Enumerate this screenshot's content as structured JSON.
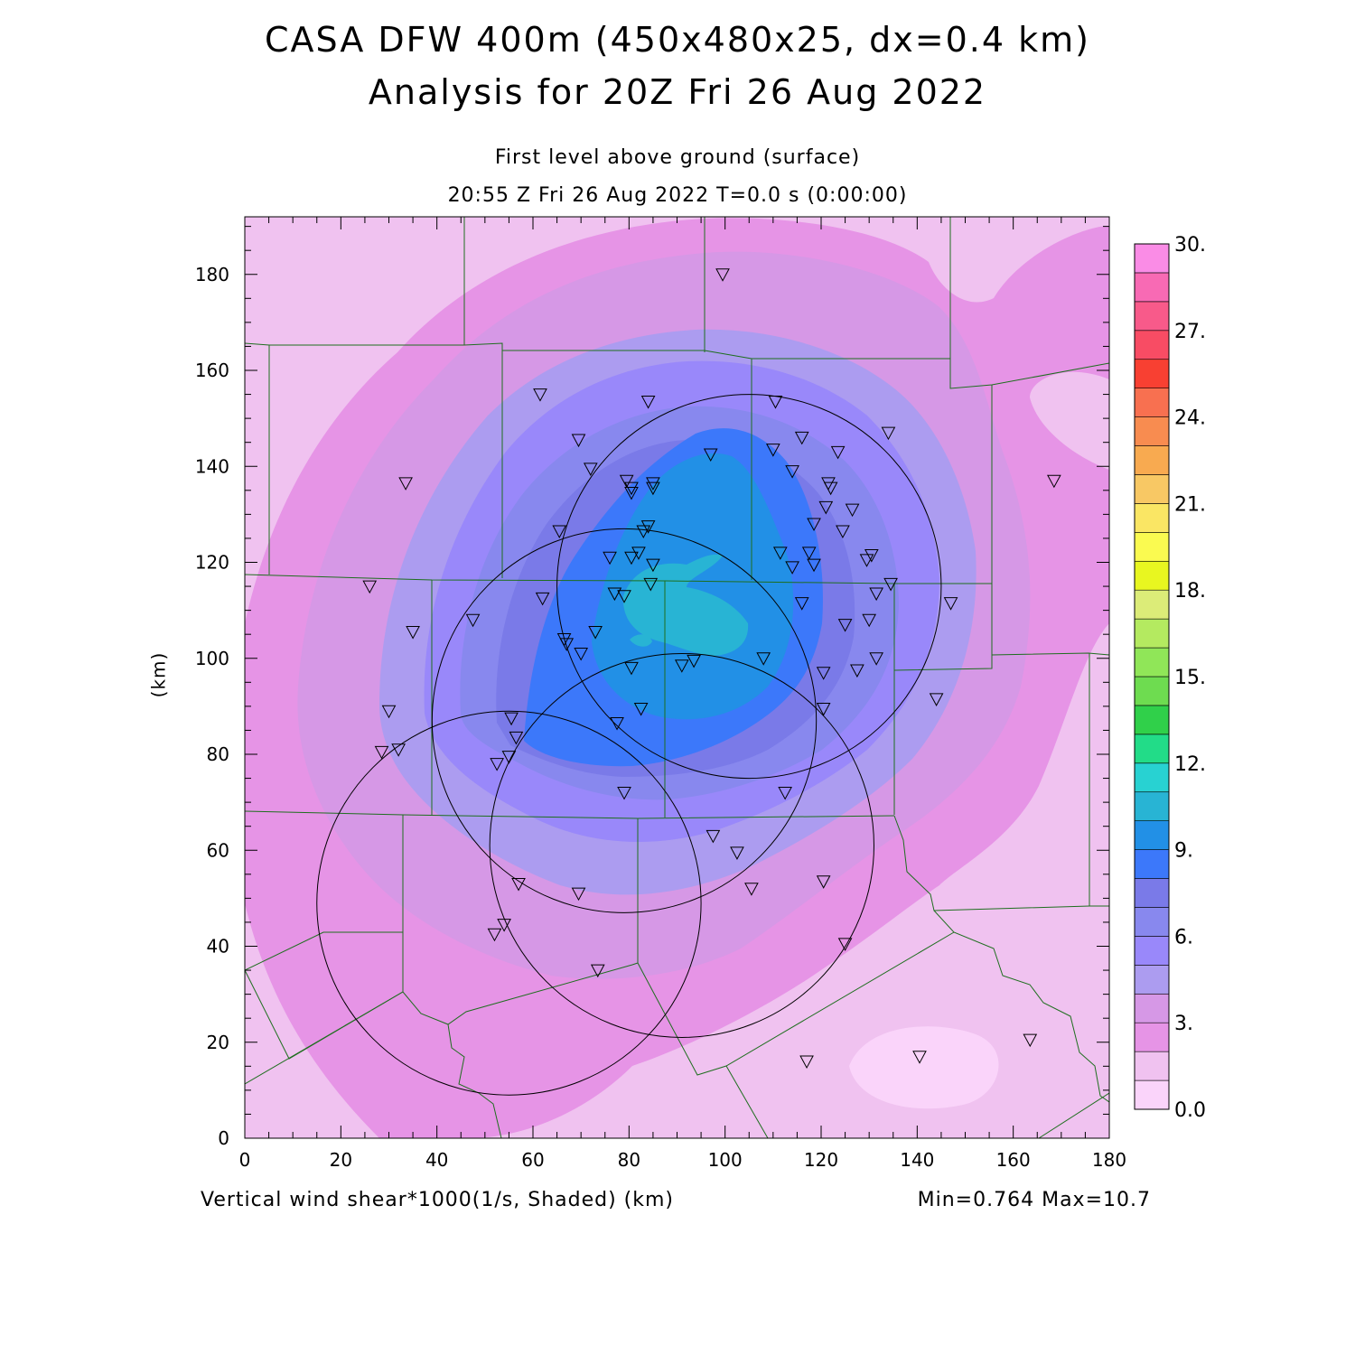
{
  "title": {
    "line1": "CASA DFW 400m (450x480x25, dx=0.4 km)",
    "line2": "Analysis for 20Z Fri 26 Aug 2022"
  },
  "subtitle": {
    "level": "First level above ground (surface)",
    "time": "20:55 Z Fri 26 Aug 2022   T=0.0 s (0:00:00)"
  },
  "axes": {
    "x_ticks": [
      "0",
      "20",
      "40",
      "60",
      "80",
      "100",
      "120",
      "140",
      "160",
      "180"
    ],
    "y_ticks": [
      "0",
      "20",
      "40",
      "60",
      "80",
      "100",
      "120",
      "140",
      "160",
      "180"
    ],
    "ylabel": "(km)",
    "xrange": [
      0,
      180
    ],
    "yrange": [
      0,
      192
    ]
  },
  "footer": {
    "variable": "Vertical wind shear*1000(1/s, Shaded)  (km)",
    "minmax": "Min=0.764 Max=10.7"
  },
  "colorbar": {
    "labels": [
      "30.",
      "27.",
      "24.",
      "21.",
      "18.",
      "15.",
      "12.",
      "9.",
      "6.",
      "3.",
      "0.0"
    ],
    "colors": [
      "#fad4fa",
      "#f0c2f0",
      "#e694e6",
      "#d698e6",
      "#ac9cf0",
      "#9988fa",
      "#8888ee",
      "#7a7ae8",
      "#3c78fa",
      "#2290e6",
      "#28b4d4",
      "#28d2d2",
      "#22dc88",
      "#30d04a",
      "#6edc50",
      "#90e658",
      "#b4ea60",
      "#dcec78",
      "#e8f620",
      "#fafa50",
      "#fae664",
      "#f8c864",
      "#f8aa50",
      "#f88c50",
      "#f87050",
      "#f84032",
      "#f84c64",
      "#f85a8a",
      "#f86ab4",
      "#fa8ce6"
    ]
  },
  "stations": [
    [
      99.5,
      180
    ],
    [
      61.5,
      155
    ],
    [
      84,
      153.5
    ],
    [
      110.5,
      153.5
    ],
    [
      134,
      147
    ],
    [
      116,
      146
    ],
    [
      69.5,
      145.5
    ],
    [
      110,
      143.5
    ],
    [
      97,
      142.5
    ],
    [
      123.5,
      143
    ],
    [
      72,
      139.5
    ],
    [
      114,
      139
    ],
    [
      168.5,
      137
    ],
    [
      33.5,
      136.5
    ],
    [
      79.5,
      137
    ],
    [
      85,
      136.5
    ],
    [
      80.5,
      135.5
    ],
    [
      121.5,
      136.5
    ],
    [
      85,
      135.5
    ],
    [
      80.5,
      134.5
    ],
    [
      122,
      135.5
    ],
    [
      126.5,
      131
    ],
    [
      121,
      131.5
    ],
    [
      118.5,
      128
    ],
    [
      84,
      127.5
    ],
    [
      83,
      126.5
    ],
    [
      65.5,
      126.5
    ],
    [
      124.5,
      126.5
    ],
    [
      111.5,
      122
    ],
    [
      117.5,
      122
    ],
    [
      130.5,
      121.5
    ],
    [
      82,
      122
    ],
    [
      76,
      121
    ],
    [
      80.5,
      121
    ],
    [
      118.5,
      119.5
    ],
    [
      129.5,
      120.5
    ],
    [
      85,
      119.5
    ],
    [
      114,
      119
    ],
    [
      26,
      115
    ],
    [
      84.5,
      115.5
    ],
    [
      134.5,
      115.5
    ],
    [
      77,
      113.5
    ],
    [
      79,
      113
    ],
    [
      62,
      112.5
    ],
    [
      131.5,
      113.5
    ],
    [
      147,
      111.5
    ],
    [
      116,
      111.5
    ],
    [
      130,
      108
    ],
    [
      47.5,
      108
    ],
    [
      35,
      105.5
    ],
    [
      73,
      105.5
    ],
    [
      125,
      107
    ],
    [
      66.5,
      104
    ],
    [
      67,
      103
    ],
    [
      70,
      101
    ],
    [
      108,
      100
    ],
    [
      93.5,
      99.5
    ],
    [
      91,
      98.5
    ],
    [
      131.5,
      100
    ],
    [
      80.5,
      98
    ],
    [
      127.5,
      97.5
    ],
    [
      120.5,
      97
    ],
    [
      144,
      91.5
    ],
    [
      30,
      89
    ],
    [
      82.5,
      89.5
    ],
    [
      120.5,
      89.5
    ],
    [
      55.5,
      87.5
    ],
    [
      77.5,
      86.5
    ],
    [
      56.5,
      83.5
    ],
    [
      28.5,
      80.5
    ],
    [
      32,
      81
    ],
    [
      55,
      79.5
    ],
    [
      52.5,
      78
    ],
    [
      79,
      72
    ],
    [
      112.5,
      72
    ],
    [
      97.5,
      63
    ],
    [
      102.5,
      59.5
    ],
    [
      57,
      53
    ],
    [
      120.5,
      53.5
    ],
    [
      105.5,
      52
    ],
    [
      69.5,
      51
    ],
    [
      54,
      44.5
    ],
    [
      52,
      42.5
    ],
    [
      125,
      40.5
    ],
    [
      73.5,
      35
    ],
    [
      163.5,
      20.5
    ],
    [
      140.5,
      17
    ],
    [
      117,
      16
    ]
  ],
  "radar_rings": [
    [
      105,
      115,
      40
    ],
    [
      79,
      87,
      40
    ],
    [
      91,
      61,
      40
    ],
    [
      55,
      49,
      40
    ]
  ]
}
